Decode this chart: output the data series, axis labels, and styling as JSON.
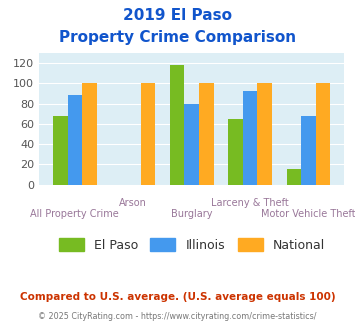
{
  "title_line1": "2019 El Paso",
  "title_line2": "Property Crime Comparison",
  "categories": [
    "All Property Crime",
    "Arson",
    "Burglary",
    "Larceny & Theft",
    "Motor Vehicle Theft"
  ],
  "elpaso": [
    68,
    0,
    118,
    65,
    16
  ],
  "illinois": [
    88,
    0,
    80,
    92,
    68
  ],
  "national": [
    100,
    100,
    100,
    100,
    100
  ],
  "color_elpaso": "#77bb22",
  "color_illinois": "#4499ee",
  "color_national": "#ffaa22",
  "ylim": [
    0,
    130
  ],
  "yticks": [
    0,
    20,
    40,
    60,
    80,
    100,
    120
  ],
  "bg_color": "#ddeef5",
  "title_color": "#1155cc",
  "xlabel_color": "#997799",
  "legend_labels": [
    "El Paso",
    "Illinois",
    "National"
  ],
  "footer_text": "Compared to U.S. average. (U.S. average equals 100)",
  "footer2_text": "© 2025 CityRating.com - https://www.cityrating.com/crime-statistics/",
  "footer_color": "#cc3300",
  "footer2_color": "#777777"
}
